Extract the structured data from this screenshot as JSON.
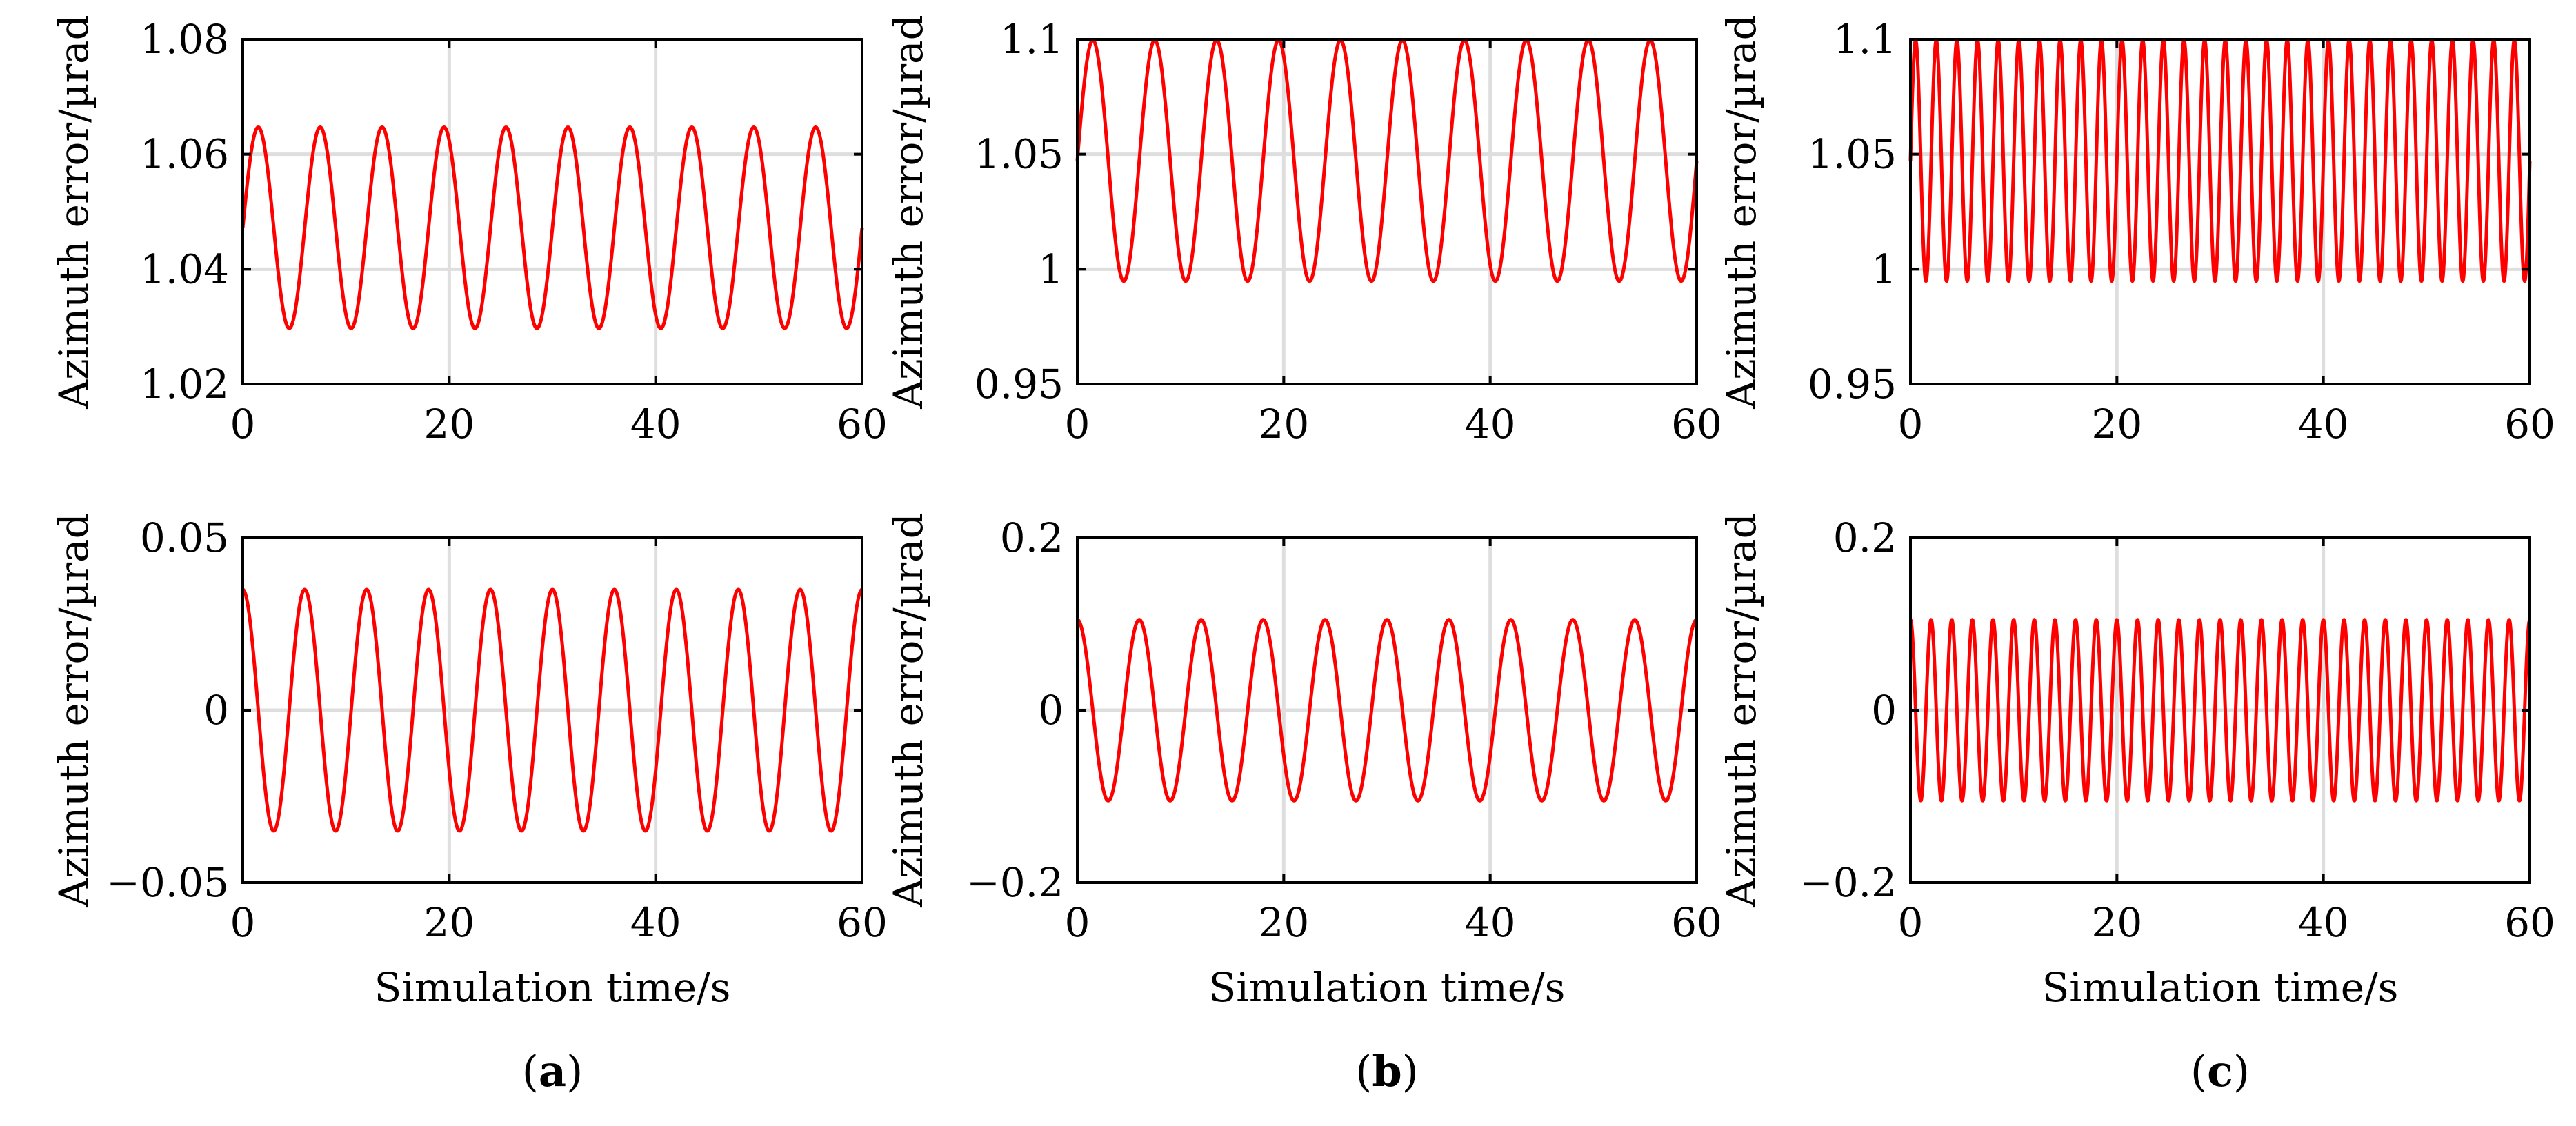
{
  "chart_data": [
    {
      "panel": "a",
      "type": "line",
      "xlabel": "",
      "ylabel": "Azimuth error/µrad",
      "xlim": [
        0,
        60
      ],
      "ylim": [
        1.02,
        1.08
      ],
      "xticks": [
        0,
        20,
        40,
        60
      ],
      "xtick_labels": [
        "0",
        "20",
        "40",
        "60"
      ],
      "yticks": [
        1.02,
        1.04,
        1.06,
        1.08
      ],
      "ytick_labels": [
        "1.02",
        "1.04",
        "1.06",
        "1.08"
      ],
      "grid": true,
      "series": [
        {
          "name": "azimuth error",
          "mean": 1.0472,
          "amplitude": 0.0175,
          "period": 6.0,
          "phase_deg": 0,
          "samples": 1500
        }
      ]
    },
    {
      "panel": "b",
      "type": "line",
      "xlabel": "",
      "ylabel": "Azimuth error/µrad",
      "xlim": [
        0,
        60
      ],
      "ylim": [
        0.95,
        1.1
      ],
      "xticks": [
        0,
        20,
        40,
        60
      ],
      "xtick_labels": [
        "0",
        "20",
        "40",
        "60"
      ],
      "yticks": [
        0.95,
        1.0,
        1.05,
        1.1
      ],
      "ytick_labels": [
        "0.95",
        "1",
        "1.05",
        "1.1"
      ],
      "grid": true,
      "series": [
        {
          "name": "azimuth error",
          "mean": 1.0472,
          "amplitude": 0.0524,
          "period": 6.0,
          "phase_deg": 0,
          "samples": 1500
        }
      ]
    },
    {
      "panel": "c",
      "type": "line",
      "xlabel": "",
      "ylabel": "Azimuth error/µrad",
      "xlim": [
        0,
        60
      ],
      "ylim": [
        0.95,
        1.1
      ],
      "xticks": [
        0,
        20,
        40,
        60
      ],
      "xtick_labels": [
        "0",
        "20",
        "40",
        "60"
      ],
      "yticks": [
        0.95,
        1.0,
        1.05,
        1.1
      ],
      "ytick_labels": [
        "0.95",
        "1",
        "1.05",
        "1.1"
      ],
      "grid": true,
      "series": [
        {
          "name": "azimuth error",
          "mean": 1.0472,
          "amplitude": 0.0524,
          "period": 2.0,
          "phase_deg": 0,
          "samples": 2500
        }
      ]
    },
    {
      "panel": "a",
      "type": "line",
      "xlabel": "Simulation time/s",
      "ylabel": "Azimuth error/µrad",
      "xlim": [
        0,
        60
      ],
      "ylim": [
        -0.05,
        0.05
      ],
      "xticks": [
        0,
        20,
        40,
        60
      ],
      "xtick_labels": [
        "0",
        "20",
        "40",
        "60"
      ],
      "yticks": [
        -0.05,
        0,
        0.05
      ],
      "ytick_labels": [
        "−0.05",
        "0",
        "0.05"
      ],
      "grid": true,
      "series": [
        {
          "name": "azimuth error",
          "mean": 0,
          "amplitude": 0.035,
          "period": 6.0,
          "phase_deg": 90,
          "samples": 1500
        }
      ]
    },
    {
      "panel": "b",
      "type": "line",
      "xlabel": "Simulation time/s",
      "ylabel": "Azimuth error/µrad",
      "xlim": [
        0,
        60
      ],
      "ylim": [
        -0.2,
        0.2
      ],
      "xticks": [
        0,
        20,
        40,
        60
      ],
      "xtick_labels": [
        "0",
        "20",
        "40",
        "60"
      ],
      "yticks": [
        -0.2,
        0,
        0.2
      ],
      "ytick_labels": [
        "−0.2",
        "0",
        "0.2"
      ],
      "grid": true,
      "series": [
        {
          "name": "azimuth error",
          "mean": 0,
          "amplitude": 0.105,
          "period": 6.0,
          "phase_deg": 90,
          "samples": 1500
        }
      ]
    },
    {
      "panel": "c",
      "type": "line",
      "xlabel": "Simulation time/s",
      "ylabel": "Azimuth error/µrad",
      "xlim": [
        0,
        60
      ],
      "ylim": [
        -0.2,
        0.2
      ],
      "xticks": [
        0,
        20,
        40,
        60
      ],
      "xtick_labels": [
        "0",
        "20",
        "40",
        "60"
      ],
      "yticks": [
        -0.2,
        0,
        0.2
      ],
      "ytick_labels": [
        "−0.2",
        "0",
        "0.2"
      ],
      "grid": true,
      "series": [
        {
          "name": "azimuth error",
          "mean": 0,
          "amplitude": 0.105,
          "period": 2.0,
          "phase_deg": 90,
          "samples": 2500
        }
      ]
    }
  ],
  "panel_labels": [
    {
      "open": "(",
      "letter": "a",
      "close": ")"
    },
    {
      "open": "(",
      "letter": "b",
      "close": ")"
    },
    {
      "open": "(",
      "letter": "c",
      "close": ")"
    }
  ],
  "style": {
    "line_color": "#ff0000",
    "grid_color": "#dedede",
    "axis_color": "#000000"
  }
}
